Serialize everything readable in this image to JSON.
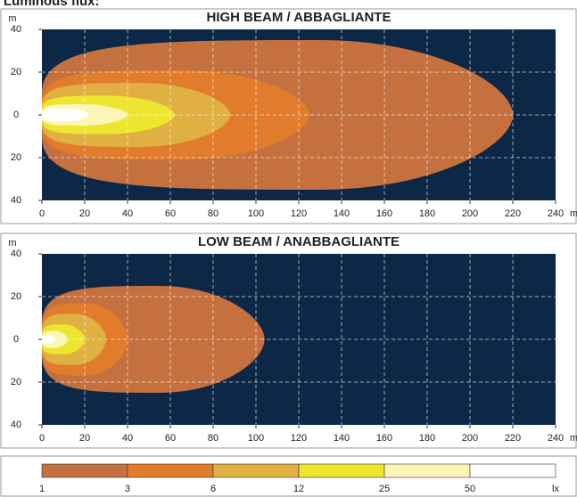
{
  "page_title": "Luminous flux:",
  "chart_data": [
    {
      "type": "isolux",
      "title": "HIGH BEAM / ABBAGLIANTE",
      "x_label": "m",
      "y_label": "m",
      "xlim": [
        0,
        240
      ],
      "xticks": [
        0,
        20,
        40,
        60,
        80,
        100,
        120,
        140,
        160,
        180,
        200,
        220,
        240
      ],
      "ylim": [
        -40,
        40
      ],
      "yticks": [
        {
          "value": 40,
          "label": "40"
        },
        20,
        0,
        {
          "value": -20,
          "label": "20"
        },
        {
          "value": -40,
          "label": "40"
        }
      ],
      "grid": true,
      "background": "#0d2846",
      "contours": [
        {
          "reach": 220,
          "half_width": 35,
          "peak_x": 130
        },
        {
          "reach": 125,
          "half_width": 21,
          "peak_x": 65
        },
        {
          "reach": 88,
          "half_width": 15,
          "peak_x": 45
        },
        {
          "reach": 62,
          "half_width": 9,
          "peak_x": 30
        },
        {
          "reach": 40,
          "half_width": 5,
          "peak_x": 18
        },
        {
          "reach": 22,
          "half_width": 3,
          "peak_x": 10
        }
      ]
    },
    {
      "type": "isolux",
      "title": "LOW BEAM / ANABBAGLIANTE",
      "x_label": "m",
      "y_label": "m",
      "xlim": [
        0,
        240
      ],
      "xticks": [
        0,
        20,
        40,
        60,
        80,
        100,
        120,
        140,
        160,
        180,
        200,
        220,
        240
      ],
      "ylim": [
        -40,
        40
      ],
      "yticks": [
        {
          "value": 40,
          "label": "40"
        },
        20,
        0,
        {
          "value": -20,
          "label": "20"
        },
        {
          "value": -40,
          "label": "40"
        }
      ],
      "grid": true,
      "background": "#0d2846",
      "contours": [
        {
          "reach": 104,
          "half_width": 25,
          "peak_x": 55
        },
        {
          "reach": 40,
          "half_width": 17,
          "peak_x": 20
        },
        {
          "reach": 30,
          "half_width": 12,
          "peak_x": 15
        },
        {
          "reach": 20,
          "half_width": 7,
          "peak_x": 10
        },
        {
          "reach": 12,
          "half_width": 4,
          "peak_x": 6
        },
        {
          "reach": 6,
          "half_width": 2,
          "peak_x": 3
        }
      ]
    }
  ],
  "legend": {
    "levels": [
      1,
      3,
      6,
      12,
      25,
      50
    ],
    "colors": [
      "#c4703f",
      "#e07c2b",
      "#e0b043",
      "#ede62f",
      "#fcf6b6",
      "#ffffff"
    ],
    "unit": "lx"
  }
}
